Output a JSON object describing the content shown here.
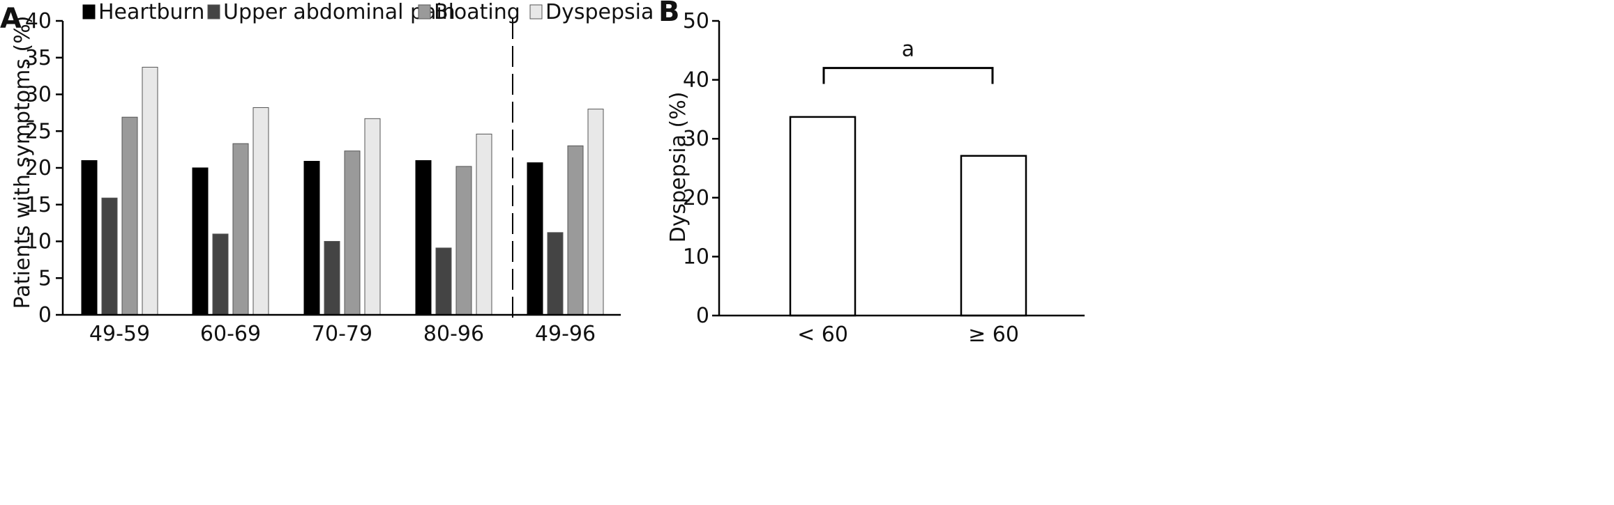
{
  "chart_data": [
    {
      "panel": "A",
      "type": "bar",
      "ylabel": "Patients with symptoms (%)",
      "ylim": [
        0,
        40
      ],
      "yticks": [
        0,
        5,
        10,
        15,
        20,
        25,
        30,
        35,
        40
      ],
      "categories": [
        "49-59",
        "60-69",
        "70-79",
        "80-96",
        "49-96"
      ],
      "legend_position": "top",
      "separator_before_category": "49-96",
      "series": [
        {
          "name": "Heartburn",
          "color": "#000000",
          "values": [
            21.0,
            20.0,
            20.9,
            21.0,
            20.7
          ]
        },
        {
          "name": "Upper abdominal pain",
          "color": "#444444",
          "values": [
            15.9,
            11.0,
            10.0,
            9.1,
            11.2
          ]
        },
        {
          "name": "Bloating",
          "color": "#9a9a9a",
          "values": [
            26.9,
            23.3,
            22.3,
            20.2,
            23.0
          ]
        },
        {
          "name": "Dyspepsia",
          "color": "#e8e8e8",
          "values": [
            33.7,
            28.2,
            26.7,
            24.6,
            28.0
          ]
        }
      ]
    },
    {
      "panel": "B",
      "type": "bar",
      "ylabel": "Dyspepsia (%)",
      "ylim": [
        0,
        50
      ],
      "yticks": [
        0,
        10,
        20,
        30,
        40,
        50
      ],
      "categories": [
        "< 60",
        "≥ 60"
      ],
      "values": [
        33.7,
        27.1
      ],
      "bar_color": "#ffffff",
      "significance": {
        "label": "a",
        "between": [
          "< 60",
          "≥ 60"
        ]
      }
    }
  ]
}
